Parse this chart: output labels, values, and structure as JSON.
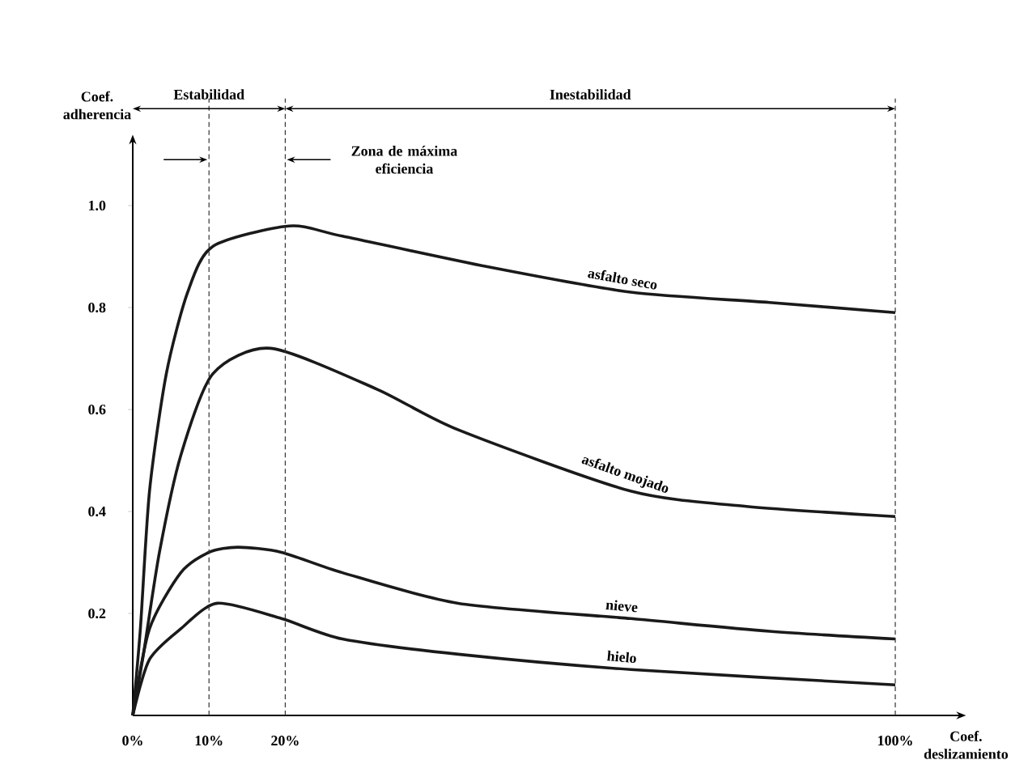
{
  "chart_data": {
    "type": "line",
    "xlabel": "Coef. deslizamiento",
    "ylabel": "Coef. adherencia",
    "xlim": [
      0,
      108
    ],
    "ylim": [
      0,
      1.12
    ],
    "xticks": [
      {
        "value": 0,
        "label": "0%"
      },
      {
        "value": 10,
        "label": "10%"
      },
      {
        "value": 20,
        "label": "20%"
      },
      {
        "value": 100,
        "label": "100%"
      }
    ],
    "yticks": [
      0.2,
      0.4,
      0.6,
      0.8,
      {
        "value": 1,
        "label": "1.0"
      }
    ],
    "marker": "none",
    "line_style": "solid",
    "series": [
      {
        "name": "asfalto seco",
        "color": "#1a1a1a",
        "x": [
          0,
          1,
          2.2,
          4.4,
          7.2,
          10.5,
          20.5,
          27.5,
          46.5,
          65.3,
          83.5,
          100
        ],
        "values": [
          0,
          0.17,
          0.44,
          0.67,
          0.83,
          0.92,
          0.96,
          0.94,
          0.88,
          0.83,
          0.81,
          0.79
        ]
      },
      {
        "name": "asfalto mojado",
        "color": "#1a1a1a",
        "x": [
          0,
          1.4,
          3.5,
          6.3,
          10.5,
          18.1,
          32,
          42.7,
          65.3,
          80.5,
          100
        ],
        "values": [
          0,
          0.12,
          0.32,
          0.51,
          0.67,
          0.72,
          0.64,
          0.56,
          0.44,
          0.41,
          0.39
        ]
      },
      {
        "name": "nieve",
        "color": "#1a1a1a",
        "x": [
          0,
          2.2,
          6.3,
          10,
          13.8,
          19.5,
          27.5,
          42.7,
          65.3,
          83.5,
          100
        ],
        "values": [
          0,
          0.17,
          0.28,
          0.32,
          0.33,
          0.32,
          0.28,
          0.22,
          0.19,
          0.165,
          0.15
        ]
      },
      {
        "name": "hielo",
        "color": "#1a1a1a",
        "x": [
          0,
          2.2,
          6.3,
          11.1,
          19.5,
          27.5,
          42.7,
          65.3,
          100
        ],
        "values": [
          0,
          0.11,
          0.17,
          0.22,
          0.19,
          0.15,
          0.12,
          0.09,
          0.06
        ]
      }
    ],
    "ref_lines": [
      {
        "axis": "x",
        "value": 10,
        "line_style": "dashed",
        "color": "#333333"
      },
      {
        "axis": "x",
        "value": 20,
        "line_style": "dashed",
        "color": "#333333"
      },
      {
        "axis": "x",
        "value": 100,
        "line_style": "dashed",
        "color": "#333333"
      }
    ],
    "annotations": [
      "Estabilidad",
      "Inestabilidad",
      "Zona de máxima eficiencia"
    ]
  }
}
